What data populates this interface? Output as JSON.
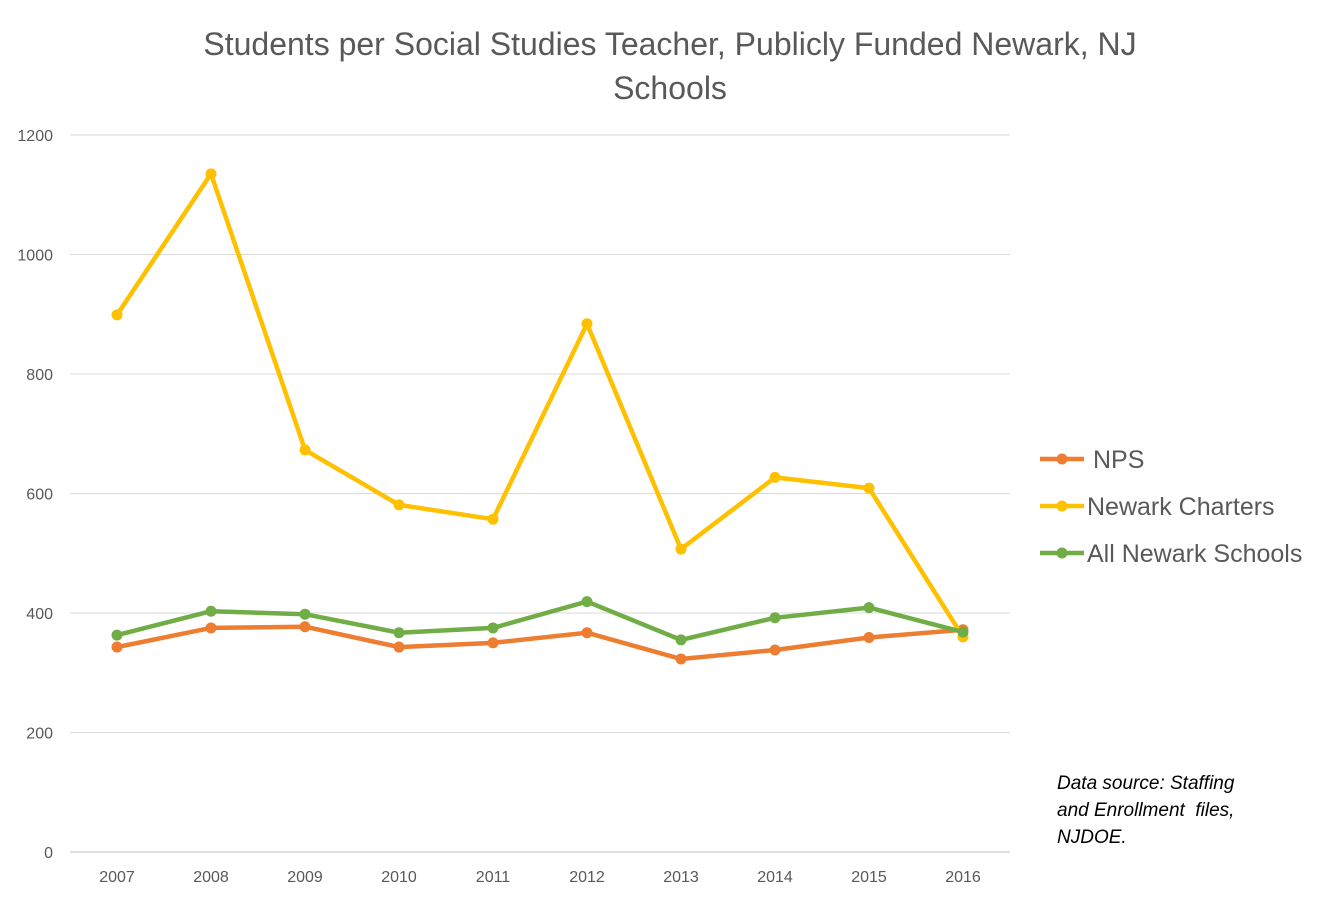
{
  "chart_data": {
    "type": "line",
    "title": "Students per Social Studies Teacher, Publicly Funded Newark, NJ Schools",
    "xlabel": "",
    "ylabel": "",
    "categories": [
      "2007",
      "2008",
      "2009",
      "2010",
      "2011",
      "2012",
      "2013",
      "2014",
      "2015",
      "2016"
    ],
    "ylim": [
      0,
      1200
    ],
    "yticks": [
      0,
      200,
      400,
      600,
      800,
      1000,
      1200
    ],
    "yticks_labels": [
      "0",
      "200",
      "400",
      "600",
      "800",
      "1000",
      "1200"
    ],
    "grid": true,
    "legend_position": "right",
    "series": [
      {
        "name": "NPS",
        "color": "#ED7D31",
        "values": [
          343,
          375,
          377,
          343,
          350,
          367,
          323,
          338,
          359,
          372
        ]
      },
      {
        "name": "Newark Charters",
        "color": "#FFC000",
        "values": [
          899,
          1135,
          673,
          581,
          557,
          884,
          507,
          627,
          609,
          360
        ]
      },
      {
        "name": "All Newark Schools",
        "color": "#70AD47",
        "values": [
          363,
          403,
          398,
          367,
          375,
          419,
          355,
          392,
          409,
          368
        ]
      }
    ],
    "annotations": [
      {
        "text_lines": [
          "Data source: Staffing",
          "and Enrollment  files,",
          "NJDOE."
        ]
      }
    ]
  }
}
